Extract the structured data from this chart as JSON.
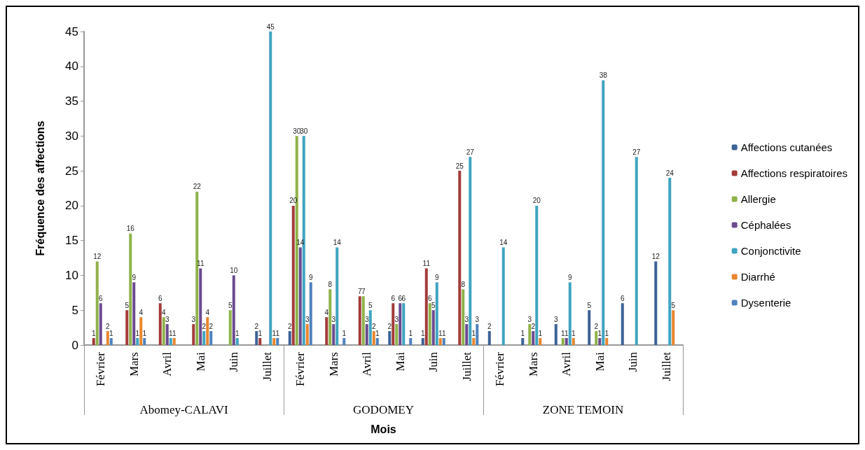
{
  "chart_data": {
    "type": "bar",
    "xlabel": "Mois",
    "ylabel": "Fréquence des affections",
    "categories": [
      "Février",
      "Mars",
      "Avril",
      "Mai",
      "Juin",
      "Juillet",
      "Février",
      "Mars",
      "Avril",
      "Mai",
      "Juin",
      "Juillet",
      "Février",
      "Mars",
      "Avril",
      "Mai",
      "Juin",
      "Juillet"
    ],
    "annotations": [
      "Abomey-CALAVI",
      "GODOMEY",
      "ZONE TEMOIN"
    ],
    "series": [
      {
        "name": "Affections cutanées",
        "color": "#3c6296",
        "values": [
          null,
          null,
          null,
          null,
          null,
          2,
          2,
          null,
          null,
          2,
          1,
          null,
          2,
          1,
          3,
          5,
          6,
          12
        ]
      },
      {
        "name": "Affections respiratoires",
        "color": "#a33b3a",
        "values": [
          1,
          5,
          6,
          3,
          null,
          1,
          20,
          4,
          7,
          6,
          11,
          25,
          null,
          null,
          null,
          null,
          null,
          null
        ]
      },
      {
        "name": "Allergie",
        "color": "#8fb24a",
        "values": [
          12,
          16,
          4,
          22,
          5,
          null,
          30,
          8,
          7,
          3,
          6,
          8,
          null,
          3,
          1,
          2,
          null,
          null
        ]
      },
      {
        "name": "Céphalées",
        "color": "#6b4a8f",
        "values": [
          6,
          9,
          3,
          11,
          10,
          null,
          14,
          3,
          3,
          6,
          5,
          3,
          null,
          2,
          1,
          1,
          null,
          null
        ]
      },
      {
        "name": "Conjonctivite",
        "color": "#3fa4c0",
        "values": [
          null,
          1,
          1,
          2,
          1,
          45,
          30,
          14,
          5,
          6,
          9,
          27,
          14,
          20,
          9,
          38,
          27,
          24
        ]
      },
      {
        "name": "Diarrhé",
        "color": "#e8862f",
        "values": [
          2,
          4,
          1,
          4,
          null,
          1,
          3,
          null,
          2,
          null,
          1,
          1,
          null,
          1,
          1,
          1,
          null,
          5
        ]
      },
      {
        "name": "Dysenterie",
        "color": "#4f81bd",
        "values": [
          1,
          1,
          null,
          2,
          null,
          1,
          9,
          1,
          1,
          1,
          1,
          3,
          null,
          null,
          null,
          null,
          null,
          null
        ]
      }
    ],
    "ylim": [
      0,
      45
    ],
    "yticks": [
      0,
      5,
      10,
      15,
      20,
      25,
      30,
      35,
      40,
      45
    ],
    "grid": false,
    "legend": "right",
    "data_labels": true
  }
}
